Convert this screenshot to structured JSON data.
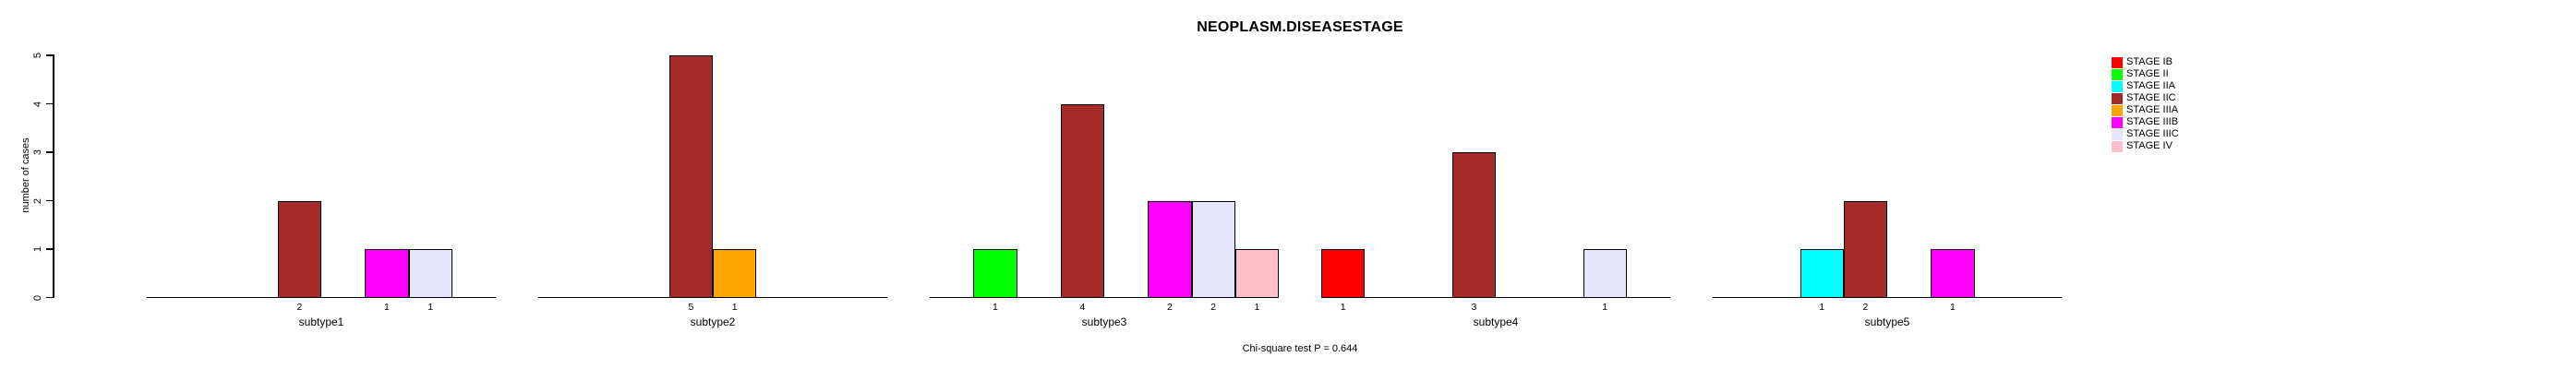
{
  "chart_data": {
    "type": "bar",
    "title": "NEOPLASM.DISEASESTAGE",
    "ylabel": "number of cases",
    "xlabel": "",
    "ylim": [
      0,
      5
    ],
    "yticks": [
      "0",
      "1",
      "2",
      "3",
      "4",
      "5"
    ],
    "grid": false,
    "legend_position": "right",
    "footnote": "Chi-square test P = 0.644",
    "stages": [
      {
        "label": "STAGE IB",
        "color": "#FF0000"
      },
      {
        "label": "STAGE II",
        "color": "#00FF00"
      },
      {
        "label": "STAGE IIA",
        "color": "#00FFFF"
      },
      {
        "label": "STAGE IIC",
        "color": "#A52A2A"
      },
      {
        "label": "STAGE IIIA",
        "color": "#FFA500"
      },
      {
        "label": "STAGE IIIB",
        "color": "#FF00FF"
      },
      {
        "label": "STAGE IIIC",
        "color": "#E6E6FA"
      },
      {
        "label": "STAGE IV",
        "color": "#FFC0CB"
      }
    ],
    "groups": [
      {
        "label": "subtype1",
        "values": [
          0,
          0,
          0,
          2,
          0,
          1,
          1,
          0
        ]
      },
      {
        "label": "subtype2",
        "values": [
          0,
          0,
          0,
          5,
          1,
          0,
          0,
          0
        ]
      },
      {
        "label": "subtype3",
        "values": [
          0,
          1,
          0,
          4,
          0,
          2,
          2,
          1
        ]
      },
      {
        "label": "subtype4",
        "values": [
          1,
          0,
          0,
          3,
          0,
          0,
          1,
          0
        ]
      },
      {
        "label": "subtype5",
        "values": [
          0,
          0,
          1,
          2,
          0,
          1,
          0,
          0
        ]
      }
    ]
  }
}
